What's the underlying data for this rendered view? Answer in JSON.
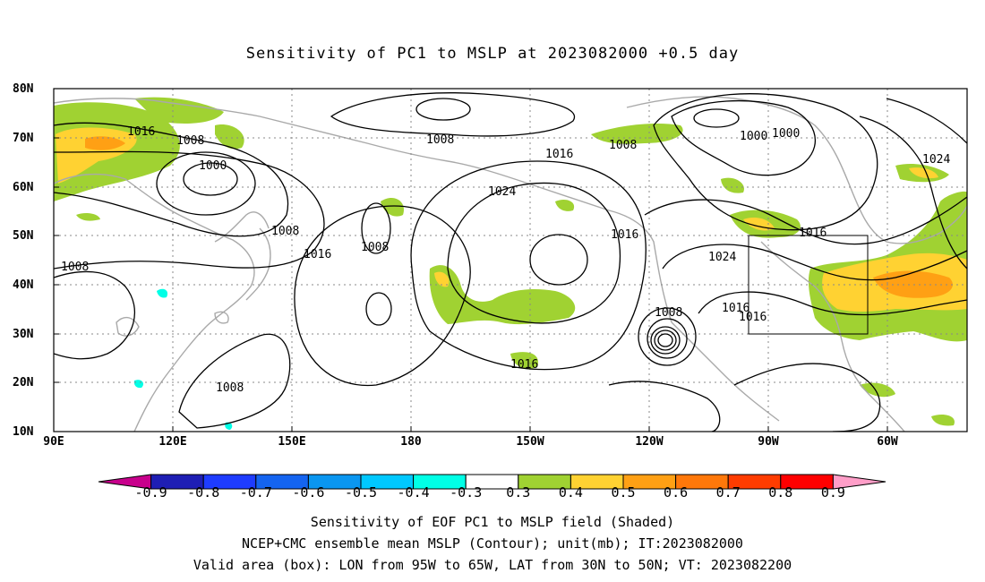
{
  "title": "Sensitivity of PC1 to MSLP at 2023082000 +0.5 day",
  "lat_labels": [
    "80N",
    "70N",
    "60N",
    "50N",
    "40N",
    "30N",
    "20N",
    "10N"
  ],
  "lon_labels": [
    "90E",
    "120E",
    "150E",
    "180",
    "150W",
    "120W",
    "90W",
    "60W"
  ],
  "colorbar": {
    "colors": [
      "#c8008c",
      "#1e1eb4",
      "#1e3cff",
      "#1464f0",
      "#0a96f0",
      "#00c8ff",
      "#00ffe6",
      "#ffffff",
      "#a0d232",
      "#ffd232",
      "#ffa014",
      "#ff780a",
      "#ff3c00",
      "#ff0000",
      "#ff9ec8"
    ],
    "labels": [
      "-0.9",
      "-0.8",
      "-0.7",
      "-0.6",
      "-0.5",
      "-0.4",
      "-0.3",
      "0.3",
      "0.4",
      "0.5",
      "0.6",
      "0.7",
      "0.8",
      "0.9"
    ]
  },
  "contour_labels": [
    "1016",
    "1008",
    "1000",
    "1008",
    "1016",
    "1008",
    "1008",
    "1016",
    "1008",
    "1024",
    "1016",
    "1008",
    "1016",
    "1008",
    "1024",
    "1008",
    "1016",
    "1016",
    "1000",
    "1000",
    "1024",
    "1016",
    "1008"
  ],
  "caption": {
    "line1": "Sensitivity of EOF PC1 to MSLP field (Shaded)",
    "line2": "NCEP+CMC ensemble mean MSLP (Contour); unit(mb); IT:2023082000",
    "line3": "Valid area (box): LON from 95W to 65W, LAT from 30N to 50N; VT: 2023082200"
  },
  "valid_box": {
    "lon": [
      "95W",
      "65W"
    ],
    "lat": [
      "30N",
      "50N"
    ]
  }
}
